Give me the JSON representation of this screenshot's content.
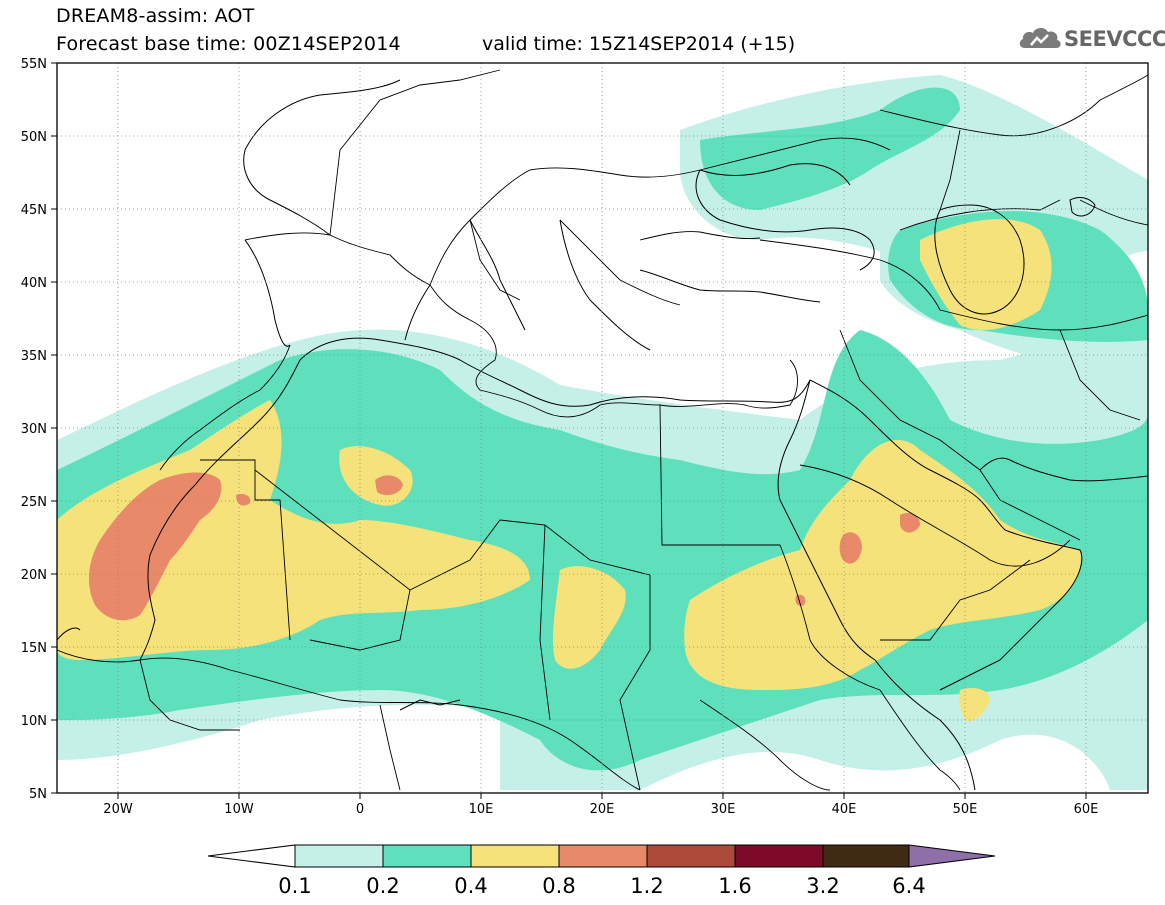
{
  "header": {
    "title_line1": "DREAM8-assim: AOT",
    "title_line2": "Forecast base time: 00Z14SEP2014",
    "valid_time": "valid time: 15Z14SEP2014 (+15)",
    "logo_text": "SEEVCCC"
  },
  "map": {
    "variable": "AOT",
    "lon_range": [
      -25,
      65
    ],
    "lat_range": [
      5,
      55
    ],
    "lon_ticks": [
      "20W",
      "10W",
      "0",
      "10E",
      "20E",
      "30E",
      "40E",
      "50E",
      "60E"
    ],
    "lon_tick_values": [
      -20,
      -10,
      0,
      10,
      20,
      30,
      40,
      50,
      60
    ],
    "lat_ticks": [
      "55N",
      "50N",
      "45N",
      "40N",
      "35N",
      "30N",
      "25N",
      "20N",
      "15N",
      "10N",
      "5N"
    ],
    "lat_tick_values": [
      55,
      50,
      45,
      40,
      35,
      30,
      25,
      20,
      15,
      10,
      5
    ],
    "grid": "dotted"
  },
  "colorbar": {
    "labels": [
      "0.1",
      "0.2",
      "0.4",
      "0.8",
      "1.2",
      "1.6",
      "3.2",
      "6.4"
    ],
    "colors": [
      "#ffffff",
      "#c4f0e8",
      "#5fe0bc",
      "#f5e27a",
      "#e8896a",
      "#ad4a3a",
      "#7d0a28",
      "#3f2a14",
      "#8e6fa8"
    ]
  },
  "colors": {
    "level1": "#c4f0e8",
    "level2": "#5fe0bc",
    "level3": "#f5e27a",
    "level4": "#e8896a",
    "border": "#000000"
  }
}
